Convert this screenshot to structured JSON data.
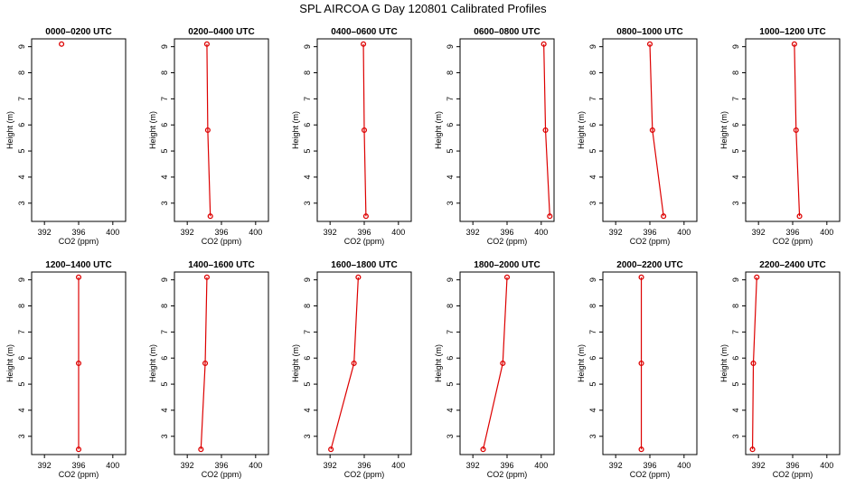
{
  "figure": {
    "title": "SPL AIRCOA G  Day 120801  Calibrated Profiles"
  },
  "colors": {
    "series": "#dd0000",
    "axis": "#000000"
  },
  "chart_data": [
    {
      "type": "line",
      "title": "0000–0200 UTC",
      "xlabel": "CO2 (ppm)",
      "ylabel": "Height (m)",
      "xlim": [
        390.5,
        401.5
      ],
      "ylim": [
        2.3,
        9.3
      ],
      "xticks": [
        392,
        396,
        400
      ],
      "xtick_labels": [
        "392",
        "396",
        "400"
      ],
      "yticks": [
        3,
        4,
        5,
        6,
        7,
        8,
        9
      ],
      "ytick_labels": [
        "3",
        "4",
        "5",
        "6",
        "7",
        "8",
        "9"
      ],
      "points": [
        {
          "x": 394.0,
          "y": 9.1
        }
      ]
    },
    {
      "type": "line",
      "title": "0200–0400 UTC",
      "xlabel": "CO2 (ppm)",
      "ylabel": "Height (m)",
      "xlim": [
        390.5,
        401.5
      ],
      "ylim": [
        2.3,
        9.3
      ],
      "xticks": [
        392,
        396,
        400
      ],
      "xtick_labels": [
        "392",
        "396",
        "400"
      ],
      "yticks": [
        3,
        4,
        5,
        6,
        7,
        8,
        9
      ],
      "ytick_labels": [
        "3",
        "4",
        "5",
        "6",
        "7",
        "8",
        "9"
      ],
      "points": [
        {
          "x": 394.7,
          "y": 2.5
        },
        {
          "x": 394.4,
          "y": 5.8
        },
        {
          "x": 394.3,
          "y": 9.1
        }
      ]
    },
    {
      "type": "line",
      "title": "0400–0600 UTC",
      "xlabel": "CO2 (ppm)",
      "ylabel": "Height (m)",
      "xlim": [
        390.5,
        401.5
      ],
      "ylim": [
        2.3,
        9.3
      ],
      "xticks": [
        392,
        396,
        400
      ],
      "xtick_labels": [
        "392",
        "396",
        "400"
      ],
      "yticks": [
        3,
        4,
        5,
        6,
        7,
        8,
        9
      ],
      "ytick_labels": [
        "3",
        "4",
        "5",
        "6",
        "7",
        "8",
        "9"
      ],
      "points": [
        {
          "x": 396.2,
          "y": 2.5
        },
        {
          "x": 396.0,
          "y": 5.8
        },
        {
          "x": 395.9,
          "y": 9.1
        }
      ]
    },
    {
      "type": "line",
      "title": "0600–0800 UTC",
      "xlabel": "CO2 (ppm)",
      "ylabel": "Height (m)",
      "xlim": [
        390.5,
        401.5
      ],
      "ylim": [
        2.3,
        9.3
      ],
      "xticks": [
        392,
        396,
        400
      ],
      "xtick_labels": [
        "392",
        "396",
        "400"
      ],
      "yticks": [
        3,
        4,
        5,
        6,
        7,
        8,
        9
      ],
      "ytick_labels": [
        "3",
        "4",
        "5",
        "6",
        "7",
        "8",
        "9"
      ],
      "points": [
        {
          "x": 401.0,
          "y": 2.5
        },
        {
          "x": 400.5,
          "y": 5.8
        },
        {
          "x": 400.3,
          "y": 9.1
        }
      ]
    },
    {
      "type": "line",
      "title": "0800–1000 UTC",
      "xlabel": "CO2 (ppm)",
      "ylabel": "Height (m)",
      "xlim": [
        390.5,
        401.5
      ],
      "ylim": [
        2.3,
        9.3
      ],
      "xticks": [
        392,
        396,
        400
      ],
      "xtick_labels": [
        "392",
        "396",
        "400"
      ],
      "yticks": [
        3,
        4,
        5,
        6,
        7,
        8,
        9
      ],
      "ytick_labels": [
        "3",
        "4",
        "5",
        "6",
        "7",
        "8",
        "9"
      ],
      "points": [
        {
          "x": 397.6,
          "y": 2.5
        },
        {
          "x": 396.3,
          "y": 5.8
        },
        {
          "x": 396.0,
          "y": 9.1
        }
      ]
    },
    {
      "type": "line",
      "title": "1000–1200 UTC",
      "xlabel": "CO2 (ppm)",
      "ylabel": "Height (m)",
      "xlim": [
        390.5,
        401.5
      ],
      "ylim": [
        2.3,
        9.3
      ],
      "xticks": [
        392,
        396,
        400
      ],
      "xtick_labels": [
        "392",
        "396",
        "400"
      ],
      "yticks": [
        3,
        4,
        5,
        6,
        7,
        8,
        9
      ],
      "ytick_labels": [
        "3",
        "4",
        "5",
        "6",
        "7",
        "8",
        "9"
      ],
      "points": [
        {
          "x": 396.8,
          "y": 2.5
        },
        {
          "x": 396.4,
          "y": 5.8
        },
        {
          "x": 396.2,
          "y": 9.1
        }
      ]
    },
    {
      "type": "line",
      "title": "1200–1400 UTC",
      "xlabel": "CO2 (ppm)",
      "ylabel": "Height (m)",
      "xlim": [
        390.5,
        401.5
      ],
      "ylim": [
        2.3,
        9.3
      ],
      "xticks": [
        392,
        396,
        400
      ],
      "xtick_labels": [
        "392",
        "396",
        "400"
      ],
      "yticks": [
        3,
        4,
        5,
        6,
        7,
        8,
        9
      ],
      "ytick_labels": [
        "3",
        "4",
        "5",
        "6",
        "7",
        "8",
        "9"
      ],
      "points": [
        {
          "x": 396.0,
          "y": 2.5
        },
        {
          "x": 396.0,
          "y": 5.8
        },
        {
          "x": 396.0,
          "y": 9.1
        }
      ]
    },
    {
      "type": "line",
      "title": "1400–1600 UTC",
      "xlabel": "CO2 (ppm)",
      "ylabel": "Height (m)",
      "xlim": [
        390.5,
        401.5
      ],
      "ylim": [
        2.3,
        9.3
      ],
      "xticks": [
        392,
        396,
        400
      ],
      "xtick_labels": [
        "392",
        "396",
        "400"
      ],
      "yticks": [
        3,
        4,
        5,
        6,
        7,
        8,
        9
      ],
      "ytick_labels": [
        "3",
        "4",
        "5",
        "6",
        "7",
        "8",
        "9"
      ],
      "points": [
        {
          "x": 393.6,
          "y": 2.5
        },
        {
          "x": 394.1,
          "y": 5.8
        },
        {
          "x": 394.3,
          "y": 9.1
        }
      ]
    },
    {
      "type": "line",
      "title": "1600–1800 UTC",
      "xlabel": "CO2 (ppm)",
      "ylabel": "Height (m)",
      "xlim": [
        390.5,
        401.5
      ],
      "ylim": [
        2.3,
        9.3
      ],
      "xticks": [
        392,
        396,
        400
      ],
      "xtick_labels": [
        "392",
        "396",
        "400"
      ],
      "yticks": [
        3,
        4,
        5,
        6,
        7,
        8,
        9
      ],
      "ytick_labels": [
        "3",
        "4",
        "5",
        "6",
        "7",
        "8",
        "9"
      ],
      "points": [
        {
          "x": 392.1,
          "y": 2.5
        },
        {
          "x": 394.8,
          "y": 5.8
        },
        {
          "x": 395.3,
          "y": 9.1
        }
      ]
    },
    {
      "type": "line",
      "title": "1800–2000 UTC",
      "xlabel": "CO2 (ppm)",
      "ylabel": "Height (m)",
      "xlim": [
        390.5,
        401.5
      ],
      "ylim": [
        2.3,
        9.3
      ],
      "xticks": [
        392,
        396,
        400
      ],
      "xtick_labels": [
        "392",
        "396",
        "400"
      ],
      "yticks": [
        3,
        4,
        5,
        6,
        7,
        8,
        9
      ],
      "ytick_labels": [
        "3",
        "4",
        "5",
        "6",
        "7",
        "8",
        "9"
      ],
      "points": [
        {
          "x": 393.2,
          "y": 2.5
        },
        {
          "x": 395.5,
          "y": 5.8
        },
        {
          "x": 396.0,
          "y": 9.1
        }
      ]
    },
    {
      "type": "line",
      "title": "2000–2200 UTC",
      "xlabel": "CO2 (ppm)",
      "ylabel": "Height (m)",
      "xlim": [
        390.5,
        401.5
      ],
      "ylim": [
        2.3,
        9.3
      ],
      "xticks": [
        392,
        396,
        400
      ],
      "xtick_labels": [
        "392",
        "396",
        "400"
      ],
      "yticks": [
        3,
        4,
        5,
        6,
        7,
        8,
        9
      ],
      "ytick_labels": [
        "3",
        "4",
        "5",
        "6",
        "7",
        "8",
        "9"
      ],
      "points": [
        {
          "x": 395.0,
          "y": 2.5
        },
        {
          "x": 395.0,
          "y": 5.8
        },
        {
          "x": 395.0,
          "y": 9.1
        }
      ]
    },
    {
      "type": "line",
      "title": "2200–2400 UTC",
      "xlabel": "CO2 (ppm)",
      "ylabel": "Height (m)",
      "xlim": [
        390.5,
        401.5
      ],
      "ylim": [
        2.3,
        9.3
      ],
      "xticks": [
        392,
        396,
        400
      ],
      "xtick_labels": [
        "392",
        "396",
        "400"
      ],
      "yticks": [
        3,
        4,
        5,
        6,
        7,
        8,
        9
      ],
      "ytick_labels": [
        "3",
        "4",
        "5",
        "6",
        "7",
        "8",
        "9"
      ],
      "points": [
        {
          "x": 391.3,
          "y": 2.5
        },
        {
          "x": 391.4,
          "y": 5.8
        },
        {
          "x": 391.8,
          "y": 9.1
        }
      ]
    }
  ]
}
